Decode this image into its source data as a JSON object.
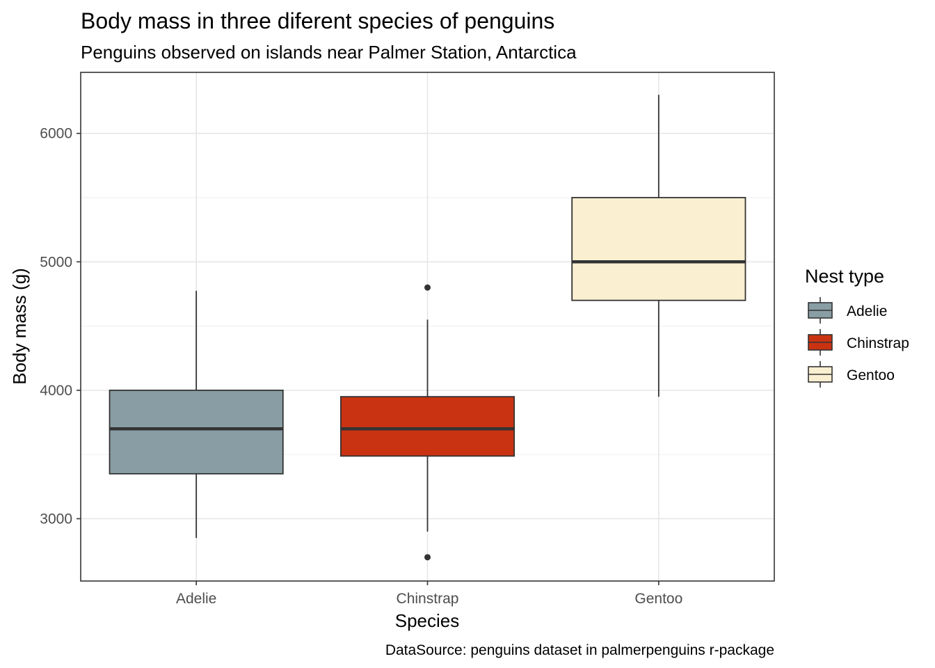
{
  "chart_data": {
    "type": "box",
    "title": "Body mass in three diferent species of penguins",
    "subtitle": "Penguins observed on islands near Palmer Station, Antarctica",
    "xlabel": "Species",
    "ylabel": "Body mass (g)",
    "caption": "DataSource: penguins dataset in palmerpenguins r-package",
    "categories": [
      "Adelie",
      "Chinstrap",
      "Gentoo"
    ],
    "ylim": [
      2515,
      6475
    ],
    "yticks": [
      3000,
      4000,
      5000,
      6000
    ],
    "ytick_labels": [
      "3000",
      "4000",
      "5000",
      "6000"
    ],
    "grid": true,
    "legend": {
      "title": "Nest type",
      "position": "right",
      "entries": [
        "Adelie",
        "Chinstrap",
        "Gentoo"
      ]
    },
    "series": [
      {
        "name": "Adelie",
        "color": "#899DA4",
        "min": 2850,
        "q1": 3350,
        "median": 3700,
        "q3": 4000,
        "max": 4775,
        "outliers": []
      },
      {
        "name": "Chinstrap",
        "color": "#C93312",
        "min": 2900,
        "q1": 3488,
        "median": 3700,
        "q3": 3950,
        "max": 4550,
        "outliers": [
          4800,
          2700
        ]
      },
      {
        "name": "Gentoo",
        "color": "#FAEFD1",
        "min": 3950,
        "q1": 4700,
        "median": 5000,
        "q3": 5500,
        "max": 6300,
        "outliers": []
      }
    ]
  }
}
